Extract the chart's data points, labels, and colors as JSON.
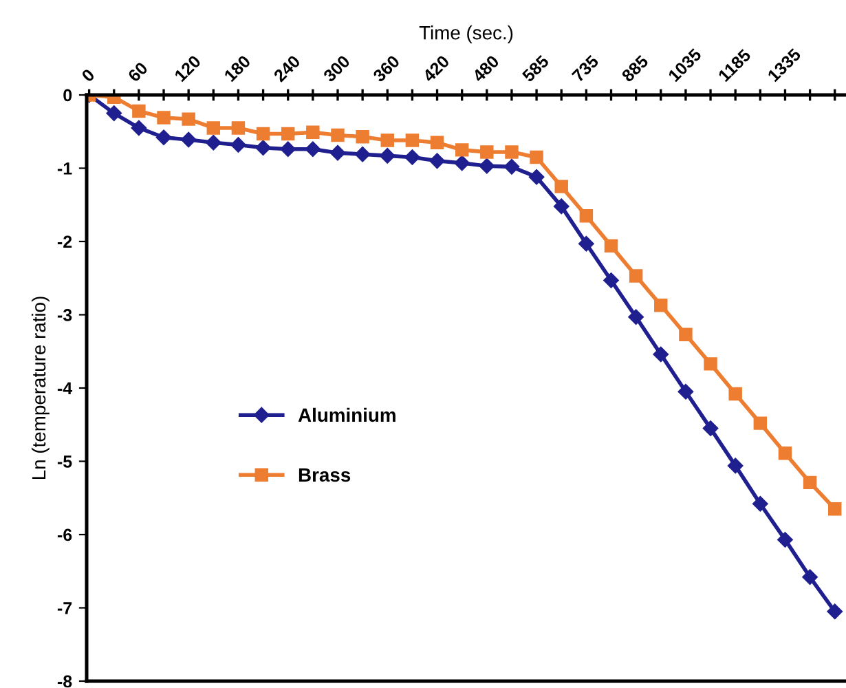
{
  "chart_data": {
    "type": "line",
    "xlabel": "Time (sec.)",
    "ylabel": "Ln (temperature ratio)",
    "categories": [
      "0",
      null,
      "60",
      null,
      "120",
      null,
      "180",
      null,
      "240",
      null,
      "300",
      null,
      "360",
      null,
      "420",
      null,
      "480",
      null,
      "585",
      null,
      "735",
      null,
      "885",
      null,
      "1035",
      null,
      "1185",
      null,
      "1335",
      null,
      null
    ],
    "series": [
      {
        "name": "Aluminium",
        "color": "#1f1f8f",
        "marker": "diamond",
        "values": [
          0,
          -0.25,
          -0.45,
          -0.58,
          -0.61,
          -0.65,
          -0.68,
          -0.72,
          -0.74,
          -0.74,
          -0.79,
          -0.81,
          -0.83,
          -0.85,
          -0.9,
          -0.93,
          -0.97,
          -0.98,
          -1.12,
          -1.52,
          -2.03,
          -2.53,
          -3.03,
          -3.54,
          -4.05,
          -4.55,
          -5.06,
          -5.58,
          -6.07,
          -6.58,
          -7.05
        ]
      },
      {
        "name": "Brass",
        "color": "#ed7d31",
        "marker": "square",
        "values": [
          0,
          -0.03,
          -0.22,
          -0.31,
          -0.33,
          -0.45,
          -0.45,
          -0.53,
          -0.53,
          -0.51,
          -0.55,
          -0.57,
          -0.62,
          -0.62,
          -0.65,
          -0.75,
          -0.78,
          -0.78,
          -0.85,
          -1.25,
          -1.65,
          -2.06,
          -2.47,
          -2.87,
          -3.27,
          -3.67,
          -4.08,
          -4.48,
          -4.89,
          -5.29,
          -5.65
        ]
      }
    ],
    "ylim": [
      -8,
      0
    ],
    "yticks": [
      -8,
      -7,
      -6,
      -5,
      -4,
      -3,
      -2,
      -1,
      0
    ],
    "grid": false,
    "legend": "center left",
    "line_style": "solid"
  }
}
